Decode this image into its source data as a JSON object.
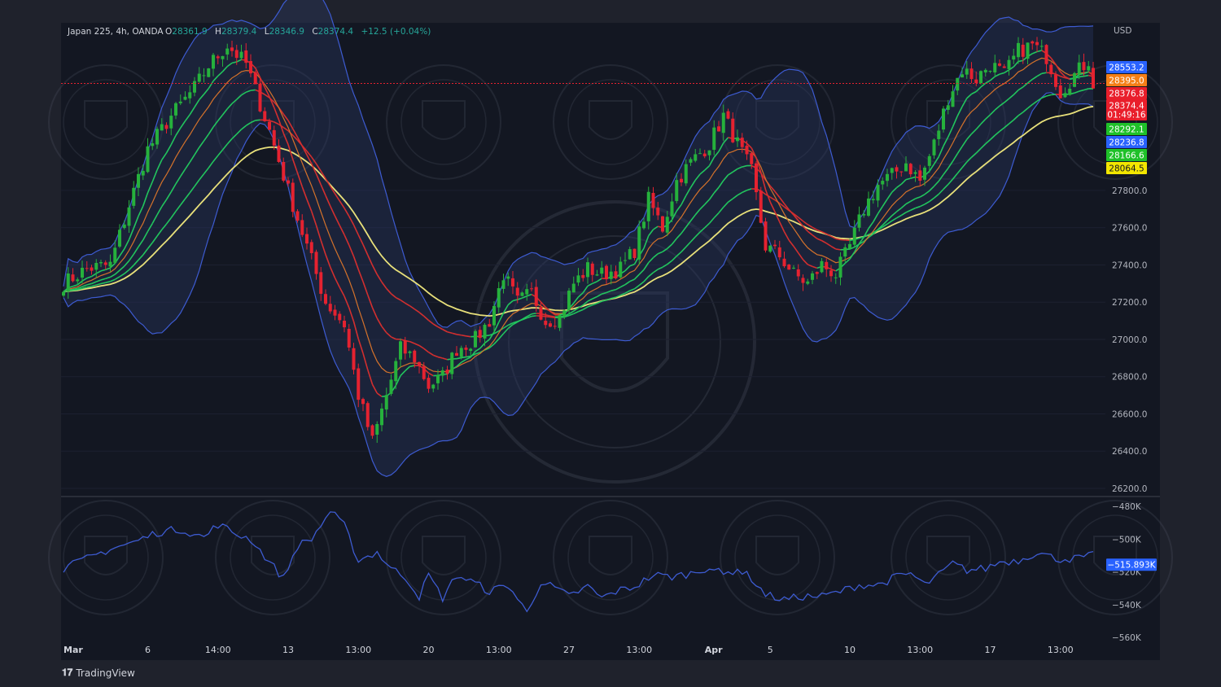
{
  "header": {
    "symbol": "Japan 225, 4h, OANDA",
    "open_label": "O",
    "open": "28361.9",
    "high_label": "H",
    "high": "28379.4",
    "low_label": "L",
    "low": "28346.9",
    "close_label": "C",
    "close": "28374.4",
    "change": "+12.5 (+0.04%)"
  },
  "currency": "USD",
  "branding": "TradingView",
  "price_tags": [
    {
      "text": "28553.2",
      "value": 28553.2,
      "color": "#2962ff"
    },
    {
      "text": "28395.0",
      "value": 28395.0,
      "color": "#f57f17"
    },
    {
      "text": "28376.8",
      "value": 28376.8,
      "color": "#e91e2b"
    },
    {
      "text": "28374.4",
      "value": 28374.4,
      "color": "#e91e2b"
    },
    {
      "text": "01:49:16",
      "value": 28374.4,
      "color": "#e91e2b"
    },
    {
      "text": "28292.1",
      "value": 28292.1,
      "color": "#1fc129"
    },
    {
      "text": "28236.8",
      "value": 28236.8,
      "color": "#2962ff"
    },
    {
      "text": "28166.6",
      "value": 28166.6,
      "color": "#1fc129"
    },
    {
      "text": "28064.5",
      "value": 28064.5,
      "color": "#f2e600"
    }
  ],
  "indicator_tag": {
    "text": "−515.893K",
    "value": -515.893,
    "color": "#2962ff"
  },
  "colors": {
    "bull": "#26b13c",
    "bear": "#e52230",
    "bb": "#3d5bd1",
    "ma_yellow": "#e8e07a",
    "ma_green": "#22c55e",
    "ma_red": "#d32f2f",
    "ma_orange": "#d4722b",
    "indicator": "#3d5bd1",
    "background": "#131722"
  },
  "chart_data": [
    {
      "type": "candlestick",
      "title": "Japan 225, 4h, OANDA",
      "y_range": [
        26200,
        28700
      ],
      "y_ticks": [
        {
          "value": 27800,
          "label": "27800.0"
        },
        {
          "value": 27600,
          "label": "27600.0"
        },
        {
          "value": 27400,
          "label": "27400.0"
        },
        {
          "value": 27200,
          "label": "27200.0"
        },
        {
          "value": 27000,
          "label": "27000.0"
        },
        {
          "value": 26800,
          "label": "26800.0"
        },
        {
          "value": 26600,
          "label": "26600.0"
        },
        {
          "value": 26400,
          "label": "26400.0"
        },
        {
          "value": 26200,
          "label": "26200.0"
        }
      ],
      "x_ticks": [
        {
          "label": "Mar",
          "bar": 0
        },
        {
          "label": "6",
          "bar": 18
        },
        {
          "label": "14:00",
          "bar": 33
        },
        {
          "label": "13",
          "bar": 48
        },
        {
          "label": "13:00",
          "bar": 63
        },
        {
          "label": "20",
          "bar": 78
        },
        {
          "label": "13:00",
          "bar": 93
        },
        {
          "label": "27",
          "bar": 108
        },
        {
          "label": "13:00",
          "bar": 123
        },
        {
          "label": "Apr",
          "bar": 137
        },
        {
          "label": "5",
          "bar": 151
        },
        {
          "label": "10",
          "bar": 168
        },
        {
          "label": "13:00",
          "bar": 183
        },
        {
          "label": "17",
          "bar": 198
        },
        {
          "label": "13:00",
          "bar": 213
        }
      ],
      "current_price_line": 28374.4,
      "anchors": [
        [
          0,
          27300
        ],
        [
          5,
          27380
        ],
        [
          10,
          27400
        ],
        [
          14,
          27720
        ],
        [
          18,
          28020
        ],
        [
          23,
          28200
        ],
        [
          28,
          28350
        ],
        [
          31,
          28470
        ],
        [
          35,
          28580
        ],
        [
          39,
          28480
        ],
        [
          44,
          28120
        ],
        [
          48,
          27800
        ],
        [
          52,
          27500
        ],
        [
          56,
          27200
        ],
        [
          60,
          27080
        ],
        [
          63,
          26700
        ],
        [
          66,
          26450
        ],
        [
          69,
          26700
        ],
        [
          72,
          26950
        ],
        [
          75,
          26900
        ],
        [
          78,
          26750
        ],
        [
          81,
          26800
        ],
        [
          84,
          26950
        ],
        [
          88,
          27000
        ],
        [
          91,
          27100
        ],
        [
          94,
          27350
        ],
        [
          97,
          27200
        ],
        [
          100,
          27250
        ],
        [
          103,
          27100
        ],
        [
          106,
          27120
        ],
        [
          109,
          27300
        ],
        [
          112,
          27380
        ],
        [
          115,
          27350
        ],
        [
          119,
          27380
        ],
        [
          122,
          27480
        ],
        [
          125,
          27750
        ],
        [
          128,
          27600
        ],
        [
          131,
          27850
        ],
        [
          134,
          27950
        ],
        [
          138,
          28050
        ],
        [
          141,
          28200
        ],
        [
          144,
          28050
        ],
        [
          147,
          27900
        ],
        [
          150,
          27500
        ],
        [
          153,
          27450
        ],
        [
          156,
          27350
        ],
        [
          159,
          27300
        ],
        [
          162,
          27400
        ],
        [
          165,
          27350
        ],
        [
          168,
          27500
        ],
        [
          171,
          27700
        ],
        [
          174,
          27830
        ],
        [
          177,
          27880
        ],
        [
          180,
          27950
        ],
        [
          183,
          27850
        ],
        [
          186,
          28050
        ],
        [
          189,
          28300
        ],
        [
          192,
          28450
        ],
        [
          195,
          28400
        ],
        [
          198,
          28480
        ],
        [
          201,
          28420
        ],
        [
          204,
          28550
        ],
        [
          207,
          28580
        ],
        [
          210,
          28520
        ],
        [
          213,
          28330
        ],
        [
          216,
          28420
        ],
        [
          219,
          28500
        ],
        [
          220,
          28374
        ]
      ],
      "indicator": {
        "y_range": [
          -560,
          -480
        ],
        "y_ticks": [
          {
            "value": -480,
            "label": "−480K"
          },
          {
            "value": -500,
            "label": "−500K"
          },
          {
            "value": -520,
            "label": "−520K"
          },
          {
            "value": -540,
            "label": "−540K"
          },
          {
            "value": -560,
            "label": "−560K"
          }
        ],
        "anchors": [
          [
            0,
            -518
          ],
          [
            5,
            -512
          ],
          [
            10,
            -506
          ],
          [
            15,
            -502
          ],
          [
            20,
            -496
          ],
          [
            25,
            -494
          ],
          [
            30,
            -499
          ],
          [
            33,
            -491
          ],
          [
            37,
            -497
          ],
          [
            40,
            -500
          ],
          [
            44,
            -514
          ],
          [
            47,
            -524
          ],
          [
            50,
            -504
          ],
          [
            53,
            -500
          ],
          [
            57,
            -483
          ],
          [
            60,
            -492
          ],
          [
            63,
            -513
          ],
          [
            67,
            -508
          ],
          [
            70,
            -518
          ],
          [
            73,
            -523
          ],
          [
            76,
            -535
          ],
          [
            78,
            -522
          ],
          [
            81,
            -536
          ],
          [
            84,
            -522
          ],
          [
            88,
            -527
          ],
          [
            91,
            -532
          ],
          [
            95,
            -528
          ],
          [
            99,
            -545
          ],
          [
            102,
            -526
          ],
          [
            105,
            -530
          ],
          [
            108,
            -535
          ],
          [
            112,
            -529
          ],
          [
            115,
            -536
          ],
          [
            118,
            -532
          ],
          [
            122,
            -529
          ],
          [
            126,
            -522
          ],
          [
            130,
            -523
          ],
          [
            134,
            -521
          ],
          [
            138,
            -517
          ],
          [
            141,
            -522
          ],
          [
            144,
            -518
          ],
          [
            147,
            -524
          ],
          [
            150,
            -534
          ],
          [
            154,
            -537
          ],
          [
            158,
            -535
          ],
          [
            162,
            -535
          ],
          [
            166,
            -532
          ],
          [
            170,
            -528
          ],
          [
            174,
            -528
          ],
          [
            178,
            -523
          ],
          [
            181,
            -521
          ],
          [
            184,
            -528
          ],
          [
            187,
            -522
          ],
          [
            190,
            -515
          ],
          [
            193,
            -519
          ],
          [
            197,
            -518
          ],
          [
            200,
            -514
          ],
          [
            204,
            -513
          ],
          [
            208,
            -508
          ],
          [
            212,
            -512
          ],
          [
            216,
            -512
          ],
          [
            220,
            -510
          ]
        ]
      }
    }
  ]
}
